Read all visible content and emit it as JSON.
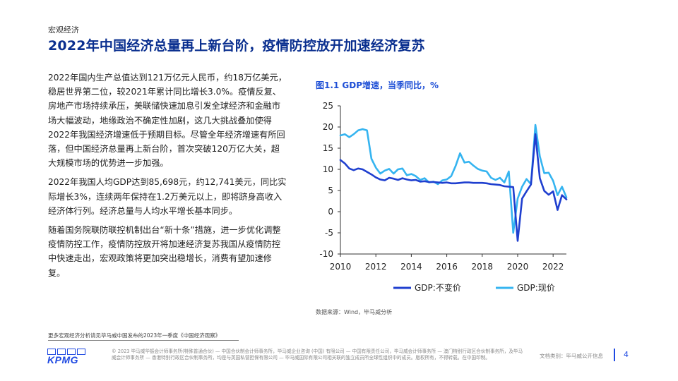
{
  "header": {
    "section": "宏观经济",
    "title": "2022年中国经济总量再上新台阶，疫情防控放开加速经济复苏"
  },
  "body": {
    "paragraphs": [
      "2022年国内生产总值达到121万亿元人民币，约18万亿美元，稳居世界第二位，较2021年累计同比增长3.0%。疫情反复、房地产市场持续承压，美联储快速加息引发全球经济和金融市场大幅波动，地缘政治不确定性加剧，这几大挑战叠加使得2022年我国经济增速低于预期目标。尽管全年经济增速有所回落，但中国经济总量再上新台阶，首次突破120万亿大关，超大规模市场的优势进一步加强。",
      "2022年我国人均GDP达到85,698元，约12,741美元，同比实际增长3%，连续两年保持在1.2万美元以上，即将跻身高收入经济体行列。经济总量与人均水平增长基本同步。",
      "随着国务院联防联控机制出台“新十条”措施，进一步优化调整疫情防控工作，疫情防控放开将加速经济复苏我国从疫情防控中快速走出，宏观政策将更加突出稳增长，消费有望加速修复。"
    ]
  },
  "chart": {
    "title": "图1.1 GDP增速，当季同比，%",
    "source": "数据来源：Wind，毕马威分析"
  },
  "chart_data": {
    "type": "line",
    "title": "图1.1 GDP增速，当季同比，%",
    "xlim": [
      2010,
      2022.75
    ],
    "ylim": [
      -10,
      25
    ],
    "xticks": [
      "2010",
      "2012",
      "2014",
      "2016",
      "2018",
      "2020",
      "2022"
    ],
    "yticks": [
      "25",
      "20",
      "15",
      "10",
      "5",
      "0",
      "-5",
      "-10"
    ],
    "grid": false,
    "legend_position": "bottom",
    "series": [
      {
        "name": "GDP:不变价",
        "color": "#1f3fcf",
        "x": [
          2010.0,
          2010.25,
          2010.5,
          2010.75,
          2011.0,
          2011.25,
          2011.5,
          2011.75,
          2012.0,
          2012.25,
          2012.5,
          2012.75,
          2013.0,
          2013.25,
          2013.5,
          2013.75,
          2014.0,
          2014.25,
          2014.5,
          2014.75,
          2015.0,
          2015.25,
          2015.5,
          2015.75,
          2016.0,
          2016.25,
          2016.5,
          2016.75,
          2017.0,
          2017.25,
          2017.5,
          2017.75,
          2018.0,
          2018.25,
          2018.5,
          2018.75,
          2019.0,
          2019.25,
          2019.5,
          2019.75,
          2020.0,
          2020.25,
          2020.5,
          2020.75,
          2021.0,
          2021.25,
          2021.5,
          2021.75,
          2022.0,
          2022.25,
          2022.5,
          2022.75
        ],
        "values": [
          12.2,
          11.4,
          10.2,
          9.8,
          10.2,
          10.0,
          9.4,
          8.8,
          8.1,
          7.6,
          7.4,
          8.0,
          7.8,
          7.5,
          7.9,
          7.6,
          7.4,
          7.5,
          7.1,
          7.2,
          7.0,
          7.0,
          6.9,
          6.8,
          6.9,
          6.7,
          6.7,
          6.8,
          6.9,
          6.9,
          6.8,
          6.8,
          6.8,
          6.7,
          6.5,
          6.4,
          6.3,
          6.0,
          5.9,
          5.8,
          -6.9,
          3.1,
          4.8,
          6.4,
          18.3,
          7.9,
          4.9,
          4.0,
          4.8,
          0.4,
          3.9,
          2.9
        ]
      },
      {
        "name": "GDP:现价",
        "color": "#35b4f0",
        "x": [
          2010.0,
          2010.25,
          2010.5,
          2010.75,
          2011.0,
          2011.25,
          2011.5,
          2011.75,
          2012.0,
          2012.25,
          2012.5,
          2012.75,
          2013.0,
          2013.25,
          2013.5,
          2013.75,
          2014.0,
          2014.25,
          2014.5,
          2014.75,
          2015.0,
          2015.25,
          2015.5,
          2015.75,
          2016.0,
          2016.25,
          2016.5,
          2016.75,
          2017.0,
          2017.25,
          2017.5,
          2017.75,
          2018.0,
          2018.25,
          2018.5,
          2018.75,
          2019.0,
          2019.25,
          2019.5,
          2019.75,
          2020.0,
          2020.25,
          2020.5,
          2020.75,
          2021.0,
          2021.25,
          2021.5,
          2021.75,
          2022.0,
          2022.25,
          2022.5,
          2022.75
        ],
        "values": [
          18.0,
          18.3,
          17.6,
          18.3,
          19.2,
          19.5,
          19.2,
          12.5,
          10.4,
          9.0,
          9.7,
          10.1,
          9.0,
          10.0,
          10.2,
          8.6,
          8.9,
          8.4,
          7.5,
          7.9,
          6.9,
          7.1,
          6.5,
          7.4,
          7.6,
          8.4,
          10.8,
          13.8,
          11.6,
          11.8,
          10.9,
          10.1,
          9.7,
          9.5,
          8.0,
          7.5,
          8.0,
          6.9,
          9.5,
          -5.0,
          3.1,
          5.9,
          7.7,
          6.5,
          20.5,
          13.1,
          9.1,
          9.2,
          7.3,
          3.9,
          5.9,
          3.4
        ]
      }
    ]
  },
  "footer": {
    "more_info": "更多宏观经济分析请见毕马威中国发布的2023年一季度《中国经济观察》",
    "logo_text": "KPMG",
    "legal": "© 2023 毕马威华振会计师事务所(特殊普通合伙) — 中国合伙制会计师事务所，毕马威企业咨询 (中国) 有限公司 — 中国有限责任公司，毕马威会计师事务所 — 澳门特别行政区合伙制事务所，及毕马威会计师事务所 — 香港特别行政区合伙制事务所，均是与英国私营担保有限公司 — 毕马威国际有限公司相关联的独立成员所全球性组织中的成员。版权所有，不得转载。在中国印制。",
    "classification": "文档类别：毕马威公开信息",
    "page_number": "4"
  }
}
